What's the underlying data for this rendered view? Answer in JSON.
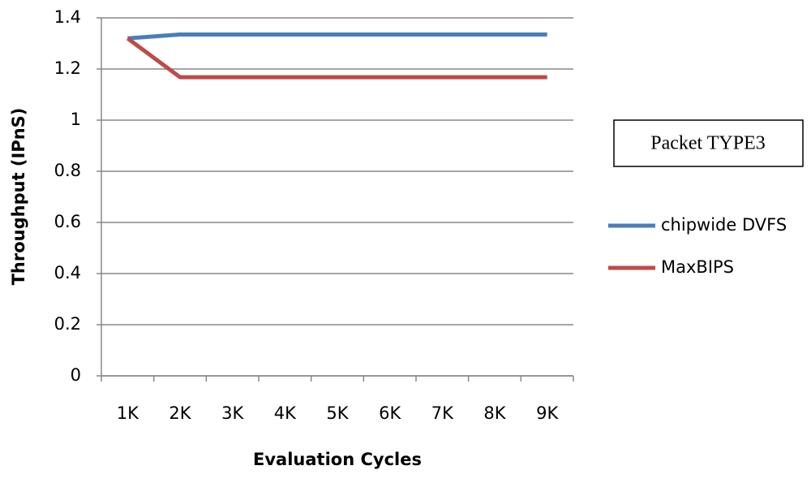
{
  "chart_data": {
    "type": "line",
    "x_label": "Evaluation Cycles",
    "y_label": "Throughput (IPnS)",
    "annotation": "Packet TYPE3",
    "categories": [
      "1K",
      "2K",
      "3K",
      "4K",
      "5K",
      "6K",
      "7K",
      "8K",
      "9K"
    ],
    "series": [
      {
        "name": "chipwide DVFS",
        "color": "#4a7ebb",
        "values": [
          1.32,
          1.335,
          1.335,
          1.335,
          1.335,
          1.335,
          1.335,
          1.335,
          1.335
        ]
      },
      {
        "name": "MaxBIPS",
        "color": "#be4b48",
        "values": [
          1.32,
          1.168,
          1.168,
          1.168,
          1.168,
          1.168,
          1.168,
          1.168,
          1.168
        ]
      }
    ],
    "ylim": [
      0,
      1.4
    ],
    "yticks": [
      0,
      0.2,
      0.4,
      0.6,
      0.8,
      1,
      1.2,
      1.4
    ],
    "grid": true,
    "legend": "right"
  }
}
